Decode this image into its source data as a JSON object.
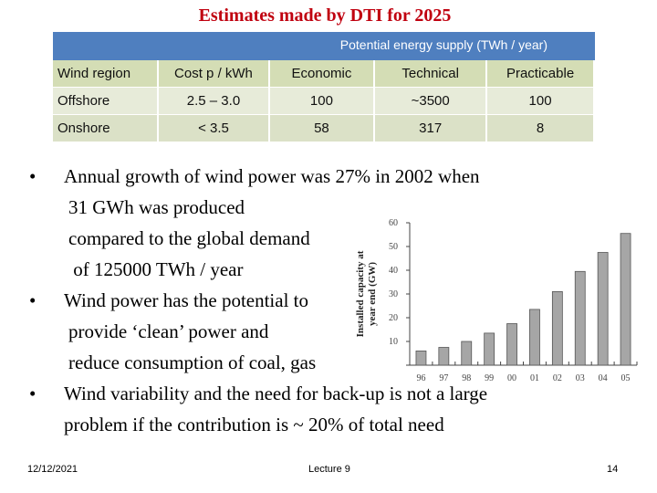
{
  "title": "Estimates made by DTI for 2025",
  "table": {
    "header": "Potential energy supply (TWh / year)",
    "columns": [
      "Wind region",
      "Cost p / kWh",
      "Economic",
      "Technical",
      "Practicable"
    ],
    "rows": [
      [
        "Offshore",
        "2.5 – 3.0",
        "100",
        "~3500",
        "100"
      ],
      [
        "Onshore",
        "< 3.5",
        "58",
        "317",
        "8"
      ]
    ]
  },
  "bullets": [
    {
      "lines": [
        "Annual growth of wind power was 27% in 2002 when",
        "31 GWh was  produced",
        "compared to the global demand",
        " of 125000 TWh / year"
      ]
    },
    {
      "lines": [
        "Wind power has the potential to",
        "provide ‘clean’ power and",
        "reduce consumption of coal, gas"
      ]
    },
    {
      "lines": [
        "Wind variability and the need for back-up is not a large",
        "problem if the contribution is ~ 20% of total need"
      ]
    }
  ],
  "chart_data": {
    "type": "bar",
    "categories": [
      "96",
      "97",
      "98",
      "99",
      "00",
      "01",
      "02",
      "03",
      "04",
      "05"
    ],
    "values": [
      6,
      7.5,
      10,
      13.5,
      17.5,
      23.5,
      31,
      39.5,
      47.5,
      55.5
    ],
    "ylabel": "Installed capacity at year end (GW)",
    "ylim": [
      0,
      60
    ],
    "yticks": [
      0,
      10,
      20,
      30,
      40,
      50,
      60
    ],
    "grid": false,
    "colors": {
      "bar": "#a6a6a6",
      "bar_edge": "#555555"
    }
  },
  "footer": {
    "date": "12/12/2021",
    "center": "Lecture 9",
    "page": "14"
  }
}
